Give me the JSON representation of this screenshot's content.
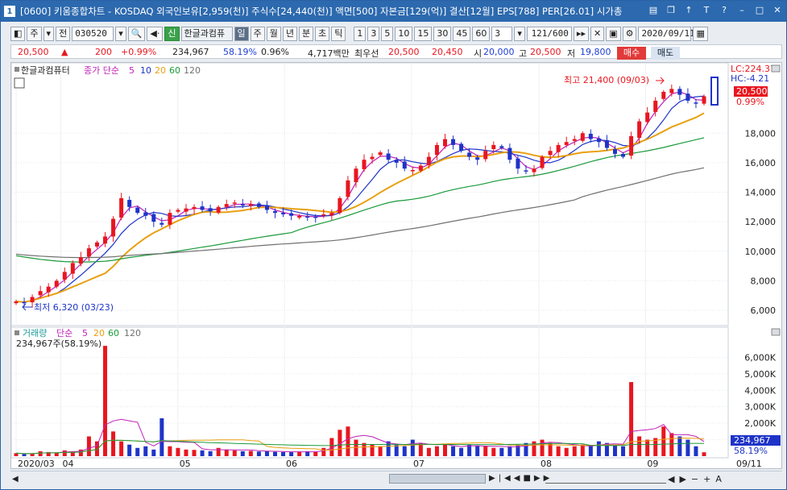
{
  "window": {
    "number": "1",
    "title": "[0600] 키움종합차트 - KOSDAQ 외국인보유[2,959(천)] 주식수[24,440(천)] 액면[500] 자본금[129(억)] 결산[12월] EPS[788] PER[26.01] 시가총"
  },
  "toolbar": {
    "period": "주",
    "prev": "전",
    "code": "030520",
    "signal": "신",
    "name": "한글과컴퓨",
    "tabs": [
      "일",
      "주",
      "월",
      "년",
      "분",
      "초",
      "틱"
    ],
    "nums": [
      "1",
      "3",
      "5",
      "10",
      "15",
      "30",
      "45",
      "60"
    ],
    "interval": "3",
    "count": "121/600",
    "date": "2020/09/11"
  },
  "quote": {
    "price": "20,500",
    "arrow": "▲",
    "change": "200",
    "pct": "+0.99%",
    "volume": "234,967",
    "vol_ratio": "58.19%",
    "turnover": "0.96%",
    "amount": "4,717백만",
    "best_label": "최우선",
    "best_ask": "20,500",
    "best_bid": "20,450",
    "open_label": "시",
    "open": "20,000",
    "high_label": "고",
    "high": "20,500",
    "low_label": "저",
    "low": "19,800",
    "buy": "매수",
    "sell": "매도"
  },
  "price_panel": {
    "legend_name": "한글과컴퓨터",
    "legend_ma_label": "종가 단순",
    "ma_periods": [
      "5",
      "10",
      "20",
      "60",
      "120"
    ],
    "ma_colors": [
      "#c020b8",
      "#1e34c8",
      "#e8a010",
      "#1a9a3a",
      "#707070"
    ],
    "lc": "LC:224.37",
    "hc": "HC:-4.21",
    "last_price": "20,500",
    "last_pct": "0.99%",
    "high_note": "최고 21,400 (09/03)",
    "low_note": "최저 6,320 (03/23)",
    "y_ticks": [
      "18,000",
      "16,000",
      "14,000",
      "12,000",
      "10,000",
      "8,000",
      "6,000"
    ]
  },
  "volume_panel": {
    "legend_name": "거래량",
    "legend_ma_label": "단순",
    "ma_periods": [
      "5",
      "20",
      "60",
      "120"
    ],
    "info": "234,967주(58.19%)",
    "y_ticks": [
      "6,000K",
      "5,000K",
      "4,000K",
      "3,000K",
      "2,000K",
      "1,000K"
    ],
    "last_vol": "234,967",
    "last_pct": "58.19%"
  },
  "x_axis": {
    "labels": [
      "2020/03",
      "04",
      "05",
      "06",
      "07",
      "08",
      "09"
    ],
    "last": "09/11"
  },
  "chart_data": {
    "type": "candlestick",
    "y_range": [
      5400,
      22000
    ],
    "low": {
      "value": 6320,
      "date": "03/23"
    },
    "high": {
      "value": 21400,
      "date": "09/03"
    },
    "last": {
      "open": 20000,
      "high": 20500,
      "low": 19800,
      "close": 20500,
      "volume": 234967
    },
    "close_path": [
      6600,
      6500,
      6900,
      7300,
      7600,
      8000,
      8600,
      9200,
      9600,
      10200,
      10600,
      11000,
      12200,
      13600,
      13000,
      12600,
      12400,
      12000,
      11800,
      12600,
      12800,
      12900,
      13000,
      12800,
      12700,
      13000,
      13200,
      13300,
      13100,
      13200,
      13000,
      12800,
      12600,
      12500,
      12400,
      12400,
      12300,
      12300,
      12500,
      12600,
      13600,
      14800,
      15600,
      16200,
      16400,
      16700,
      16200,
      16000,
      15600,
      15500,
      15800,
      16400,
      17200,
      17600,
      17200,
      16800,
      16400,
      16200,
      16800,
      17200,
      17000,
      16200,
      15600,
      15400,
      15600,
      16400,
      16800,
      17200,
      17400,
      17600,
      18000,
      17600,
      17400,
      17000,
      16600,
      16400,
      17800,
      18800,
      19400,
      20200,
      20800,
      21000,
      20600,
      20200,
      20000,
      20500
    ],
    "volume_path_k": [
      180,
      120,
      160,
      300,
      250,
      200,
      350,
      280,
      400,
      1200,
      900,
      6700,
      1500,
      900,
      700,
      500,
      600,
      400,
      2300,
      600,
      500,
      400,
      380,
      350,
      300,
      500,
      400,
      350,
      300,
      320,
      280,
      300,
      260,
      250,
      240,
      260,
      300,
      280,
      500,
      1100,
      1600,
      1800,
      1000,
      800,
      700,
      600,
      900,
      700,
      600,
      1000,
      800,
      500,
      600,
      700,
      600,
      500,
      700,
      650,
      600,
      500,
      500,
      600,
      700,
      800,
      900,
      1000,
      800,
      600,
      500,
      600,
      700,
      650,
      900,
      800,
      700,
      600,
      4500,
      1200,
      1000,
      1100,
      1800,
      1400,
      1200,
      1000,
      600,
      235
    ]
  }
}
